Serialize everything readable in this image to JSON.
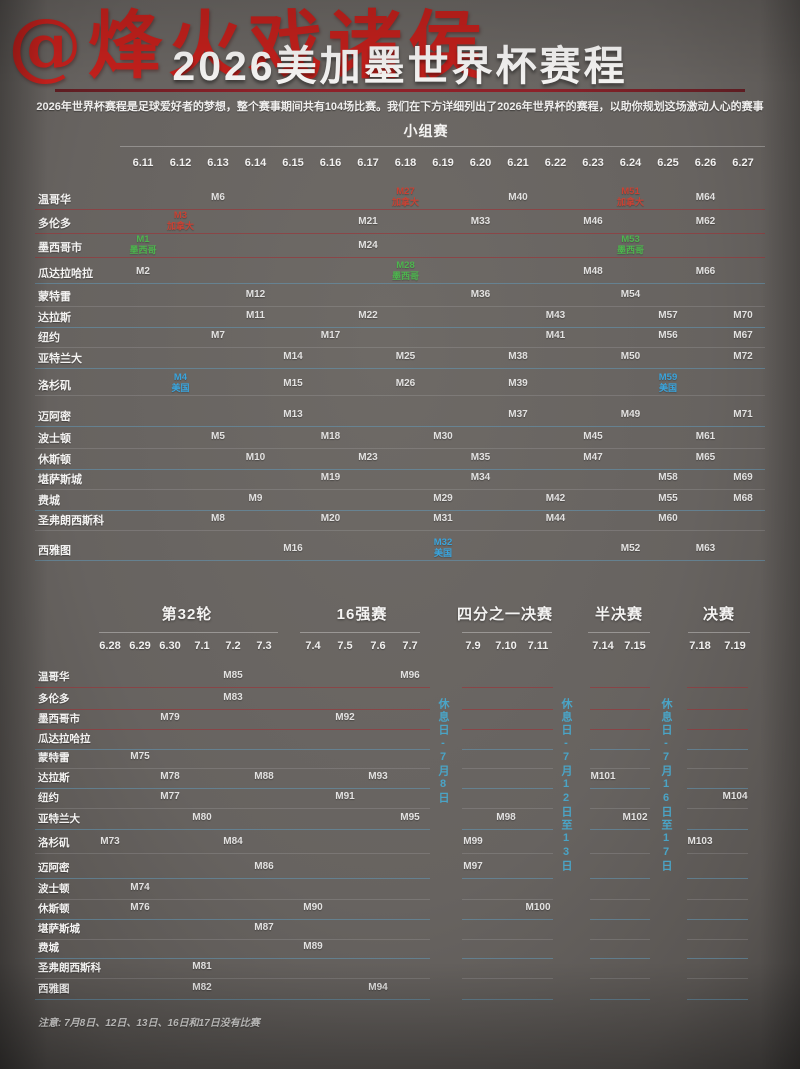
{
  "watermark": "@烽火戏诸侯",
  "header": {
    "title": "2026美加墨世界杯赛程",
    "subtitle": "2026年世界杯赛程是足球爱好者的梦想，整个赛事期间共有104场比赛。我们在下方详细列出了2026年世界杯的赛程，以助你规划这场激动人心的赛事"
  },
  "colors": {
    "title_rule_red": "#8e2129",
    "watermark_red": "#c2201c",
    "rest_label_blue": "#4aa4c6",
    "host": {
      "加拿大": "#c84234",
      "墨西哥": "#4db54e",
      "美国": "#3aa4dc"
    }
  },
  "cities": [
    "温哥华",
    "多伦多",
    "墨西哥市",
    "瓜达拉哈拉",
    "蒙特雷",
    "达拉斯",
    "纽约",
    "亚特兰大",
    "洛杉矶",
    "迈阿密",
    "波士顿",
    "休斯顿",
    "堪萨斯城",
    "费城",
    "圣弗朗西斯科",
    "西雅图"
  ],
  "note": "注意: 7月8日、12日、13日、16日和17日没有比赛",
  "chart_data": {
    "type": "table",
    "title": "2026美加墨世界杯赛程",
    "group_stage": {
      "title": "小组赛",
      "dates": [
        "6.11",
        "6.12",
        "6.13",
        "6.14",
        "6.15",
        "6.16",
        "6.17",
        "6.18",
        "6.19",
        "6.20",
        "6.21",
        "6.22",
        "6.23",
        "6.24",
        "6.25",
        "6.26",
        "6.27"
      ],
      "matches": [
        {
          "m": "M6",
          "city": "温哥华",
          "date": "6.13"
        },
        {
          "m": "M27",
          "city": "温哥华",
          "date": "6.18",
          "host": "加拿大"
        },
        {
          "m": "M40",
          "city": "温哥华",
          "date": "6.21"
        },
        {
          "m": "M51",
          "city": "温哥华",
          "date": "6.24",
          "host": "加拿大"
        },
        {
          "m": "M64",
          "city": "温哥华",
          "date": "6.26"
        },
        {
          "m": "M3",
          "city": "多伦多",
          "date": "6.12",
          "host": "加拿大"
        },
        {
          "m": "M21",
          "city": "多伦多",
          "date": "6.17"
        },
        {
          "m": "M33",
          "city": "多伦多",
          "date": "6.20"
        },
        {
          "m": "M46",
          "city": "多伦多",
          "date": "6.23"
        },
        {
          "m": "M62",
          "city": "多伦多",
          "date": "6.26"
        },
        {
          "m": "M1",
          "city": "墨西哥市",
          "date": "6.11",
          "host": "墨西哥"
        },
        {
          "m": "M24",
          "city": "墨西哥市",
          "date": "6.17"
        },
        {
          "m": "M53",
          "city": "墨西哥市",
          "date": "6.24",
          "host": "墨西哥"
        },
        {
          "m": "M2",
          "city": "瓜达拉哈拉",
          "date": "6.11"
        },
        {
          "m": "M28",
          "city": "瓜达拉哈拉",
          "date": "6.18",
          "host": "墨西哥"
        },
        {
          "m": "M48",
          "city": "瓜达拉哈拉",
          "date": "6.23"
        },
        {
          "m": "M66",
          "city": "瓜达拉哈拉",
          "date": "6.26"
        },
        {
          "m": "M12",
          "city": "蒙特雷",
          "date": "6.14"
        },
        {
          "m": "M36",
          "city": "蒙特雷",
          "date": "6.20"
        },
        {
          "m": "M54",
          "city": "蒙特雷",
          "date": "6.24"
        },
        {
          "m": "M11",
          "city": "达拉斯",
          "date": "6.14"
        },
        {
          "m": "M22",
          "city": "达拉斯",
          "date": "6.17"
        },
        {
          "m": "M43",
          "city": "达拉斯",
          "date": "6.22"
        },
        {
          "m": "M57",
          "city": "达拉斯",
          "date": "6.25"
        },
        {
          "m": "M70",
          "city": "达拉斯",
          "date": "6.27"
        },
        {
          "m": "M7",
          "city": "纽约",
          "date": "6.13"
        },
        {
          "m": "M17",
          "city": "纽约",
          "date": "6.16"
        },
        {
          "m": "M41",
          "city": "纽约",
          "date": "6.22"
        },
        {
          "m": "M56",
          "city": "纽约",
          "date": "6.25"
        },
        {
          "m": "M67",
          "city": "纽约",
          "date": "6.27"
        },
        {
          "m": "M14",
          "city": "亚特兰大",
          "date": "6.15"
        },
        {
          "m": "M25",
          "city": "亚特兰大",
          "date": "6.18"
        },
        {
          "m": "M38",
          "city": "亚特兰大",
          "date": "6.21"
        },
        {
          "m": "M50",
          "city": "亚特兰大",
          "date": "6.24"
        },
        {
          "m": "M72",
          "city": "亚特兰大",
          "date": "6.27"
        },
        {
          "m": "M4",
          "city": "洛杉矶",
          "date": "6.12",
          "host": "美国"
        },
        {
          "m": "M15",
          "city": "洛杉矶",
          "date": "6.15"
        },
        {
          "m": "M26",
          "city": "洛杉矶",
          "date": "6.18"
        },
        {
          "m": "M39",
          "city": "洛杉矶",
          "date": "6.21"
        },
        {
          "m": "M59",
          "city": "洛杉矶",
          "date": "6.25",
          "host": "美国"
        },
        {
          "m": "M13",
          "city": "迈阿密",
          "date": "6.15"
        },
        {
          "m": "M37",
          "city": "迈阿密",
          "date": "6.21"
        },
        {
          "m": "M49",
          "city": "迈阿密",
          "date": "6.24"
        },
        {
          "m": "M71",
          "city": "迈阿密",
          "date": "6.27"
        },
        {
          "m": "M5",
          "city": "波士顿",
          "date": "6.13"
        },
        {
          "m": "M18",
          "city": "波士顿",
          "date": "6.16"
        },
        {
          "m": "M30",
          "city": "波士顿",
          "date": "6.19"
        },
        {
          "m": "M45",
          "city": "波士顿",
          "date": "6.23"
        },
        {
          "m": "M61",
          "city": "波士顿",
          "date": "6.26"
        },
        {
          "m": "M10",
          "city": "休斯顿",
          "date": "6.14"
        },
        {
          "m": "M23",
          "city": "休斯顿",
          "date": "6.17"
        },
        {
          "m": "M35",
          "city": "休斯顿",
          "date": "6.20"
        },
        {
          "m": "M47",
          "city": "休斯顿",
          "date": "6.23"
        },
        {
          "m": "M65",
          "city": "休斯顿",
          "date": "6.26"
        },
        {
          "m": "M19",
          "city": "堪萨斯城",
          "date": "6.16"
        },
        {
          "m": "M34",
          "city": "堪萨斯城",
          "date": "6.20"
        },
        {
          "m": "M58",
          "city": "堪萨斯城",
          "date": "6.25"
        },
        {
          "m": "M69",
          "city": "堪萨斯城",
          "date": "6.27"
        },
        {
          "m": "M9",
          "city": "费城",
          "date": "6.14"
        },
        {
          "m": "M29",
          "city": "费城",
          "date": "6.19"
        },
        {
          "m": "M42",
          "city": "费城",
          "date": "6.22"
        },
        {
          "m": "M55",
          "city": "费城",
          "date": "6.25"
        },
        {
          "m": "M68",
          "city": "费城",
          "date": "6.27"
        },
        {
          "m": "M8",
          "city": "圣弗朗西斯科",
          "date": "6.13"
        },
        {
          "m": "M20",
          "city": "圣弗朗西斯科",
          "date": "6.16"
        },
        {
          "m": "M31",
          "city": "圣弗朗西斯科",
          "date": "6.19"
        },
        {
          "m": "M44",
          "city": "圣弗朗西斯科",
          "date": "6.22"
        },
        {
          "m": "M60",
          "city": "圣弗朗西斯科",
          "date": "6.25"
        },
        {
          "m": "M16",
          "city": "西雅图",
          "date": "6.15"
        },
        {
          "m": "M32",
          "city": "西雅图",
          "date": "6.19",
          "host": "美国"
        },
        {
          "m": "M52",
          "city": "西雅图",
          "date": "6.24"
        },
        {
          "m": "M63",
          "city": "西雅图",
          "date": "6.26"
        }
      ]
    },
    "knockout": {
      "rounds": [
        {
          "title": "第32轮",
          "dates": [
            "6.28",
            "6.29",
            "6.30",
            "7.1",
            "7.2",
            "7.3"
          ],
          "matches": [
            {
              "m": "M85",
              "city": "温哥华",
              "date": "7.2"
            },
            {
              "m": "M83",
              "city": "多伦多",
              "date": "7.2"
            },
            {
              "m": "M79",
              "city": "墨西哥市",
              "date": "6.30"
            },
            {
              "m": "M75",
              "city": "蒙特雷",
              "date": "6.29"
            },
            {
              "m": "M78",
              "city": "达拉斯",
              "date": "6.30"
            },
            {
              "m": "M88",
              "city": "达拉斯",
              "date": "7.3"
            },
            {
              "m": "M77",
              "city": "纽约",
              "date": "6.30"
            },
            {
              "m": "M80",
              "city": "亚特兰大",
              "date": "7.1"
            },
            {
              "m": "M73",
              "city": "洛杉矶",
              "date": "6.28"
            },
            {
              "m": "M84",
              "city": "洛杉矶",
              "date": "7.2"
            },
            {
              "m": "M86",
              "city": "迈阿密",
              "date": "7.3"
            },
            {
              "m": "M74",
              "city": "波士顿",
              "date": "6.29"
            },
            {
              "m": "M76",
              "city": "休斯顿",
              "date": "6.29"
            },
            {
              "m": "M87",
              "city": "堪萨斯城",
              "date": "7.3"
            },
            {
              "m": "M81",
              "city": "圣弗朗西斯科",
              "date": "7.1"
            },
            {
              "m": "M82",
              "city": "西雅图",
              "date": "7.1"
            }
          ]
        },
        {
          "title": "16强赛",
          "dates": [
            "7.4",
            "7.5",
            "7.6",
            "7.7"
          ],
          "matches": [
            {
              "m": "M96",
              "city": "温哥华",
              "date": "7.7"
            },
            {
              "m": "M92",
              "city": "墨西哥市",
              "date": "7.5"
            },
            {
              "m": "M93",
              "city": "达拉斯",
              "date": "7.6"
            },
            {
              "m": "M91",
              "city": "纽约",
              "date": "7.5"
            },
            {
              "m": "M95",
              "city": "亚特兰大",
              "date": "7.7"
            },
            {
              "m": "M89",
              "city": "费城",
              "date": "7.4"
            },
            {
              "m": "M90",
              "city": "休斯顿",
              "date": "7.4"
            },
            {
              "m": "M94",
              "city": "西雅图",
              "date": "7.6"
            }
          ]
        },
        {
          "title": "四分之一决赛",
          "dates": [
            "7.9",
            "7.10",
            "7.11"
          ],
          "matches": [
            {
              "m": "M98",
              "city": "亚特兰大",
              "date": "7.10"
            },
            {
              "m": "M99",
              "city": "洛杉矶",
              "date": "7.9"
            },
            {
              "m": "M97",
              "city": "迈阿密",
              "date": "7.9"
            },
            {
              "m": "M100",
              "city": "休斯顿",
              "date": "7.11"
            }
          ]
        },
        {
          "title": "半决赛",
          "dates": [
            "7.14",
            "7.15"
          ],
          "matches": [
            {
              "m": "M101",
              "city": "达拉斯",
              "date": "7.14"
            },
            {
              "m": "M102",
              "city": "亚特兰大",
              "date": "7.15"
            }
          ]
        },
        {
          "title": "决赛",
          "dates": [
            "7.18",
            "7.19"
          ],
          "matches": [
            {
              "m": "M103",
              "city": "洛杉矶",
              "date": "7.18"
            },
            {
              "m": "M104",
              "city": "纽约",
              "date": "7.19"
            }
          ]
        }
      ],
      "rest_days": [
        "休息日-7月8日",
        "休息日-7月12日至13日",
        "休息日-7月16日至17日"
      ]
    }
  }
}
